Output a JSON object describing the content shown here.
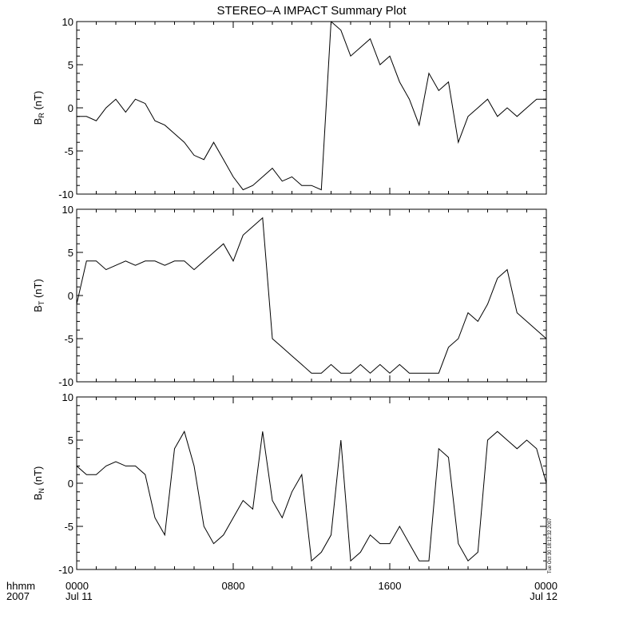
{
  "title": "STEREO–A IMPACT Summary Plot",
  "timestamp": "Tue Oct 30 18:12:32 2007",
  "time_axis_labels": {
    "row1_unit": "hhmm",
    "row2_year": "2007",
    "ticks": [
      {
        "time": "0000",
        "date": "Jul 11"
      },
      {
        "time": "0800",
        "date": ""
      },
      {
        "time": "1600",
        "date": ""
      },
      {
        "time": "0000",
        "date": "Jul 12"
      }
    ]
  },
  "chart_data": [
    {
      "type": "line",
      "series": [
        {
          "name": "BR"
        }
      ],
      "ylabel": {
        "main": "B",
        "sub": "R",
        "unit": "(nT)"
      },
      "ylim": [
        -10,
        10
      ],
      "xlim_hours": [
        0,
        24
      ],
      "yticks": [
        "10",
        "5",
        "0",
        "-5",
        "-10"
      ],
      "x_hours": [
        0,
        0.5,
        1,
        1.5,
        2,
        2.5,
        3,
        3.5,
        4,
        4.5,
        5,
        5.5,
        6,
        6.5,
        7,
        7.5,
        8,
        8.5,
        9,
        9.5,
        10,
        10.5,
        11,
        11.5,
        12,
        12.5,
        13,
        13.5,
        14,
        14.5,
        15,
        15.5,
        16,
        16.5,
        17,
        17.5,
        18,
        18.5,
        19,
        19.5,
        20,
        20.5,
        21,
        21.5,
        22,
        22.5,
        23,
        23.5,
        24
      ],
      "values": [
        -1,
        -1,
        -1.5,
        0,
        1,
        -0.5,
        1,
        0.5,
        -1.5,
        -2,
        -3,
        -4,
        -5.5,
        -6,
        -4,
        -6,
        -8,
        -9.5,
        -9,
        -8,
        -7,
        -8.5,
        -8,
        -9,
        -9,
        -9.5,
        10,
        9,
        6,
        7,
        8,
        5,
        6,
        3,
        1,
        -2,
        4,
        2,
        3,
        -4,
        -1,
        0,
        1,
        -1,
        0,
        -1,
        0,
        1,
        1
      ]
    },
    {
      "type": "line",
      "series": [
        {
          "name": "BT"
        }
      ],
      "ylabel": {
        "main": "B",
        "sub": "T",
        "unit": "(nT)"
      },
      "ylim": [
        -10,
        10
      ],
      "xlim_hours": [
        0,
        24
      ],
      "yticks": [
        "10",
        "5",
        "0",
        "-5",
        "-10"
      ],
      "x_hours": [
        0,
        0.5,
        1,
        1.5,
        2,
        2.5,
        3,
        3.5,
        4,
        4.5,
        5,
        5.5,
        6,
        6.5,
        7,
        7.5,
        8,
        8.5,
        9,
        9.5,
        10,
        10.5,
        11,
        11.5,
        12,
        12.5,
        13,
        13.5,
        14,
        14.5,
        15,
        15.5,
        16,
        16.5,
        17,
        17.5,
        18,
        18.5,
        19,
        19.5,
        20,
        20.5,
        21,
        21.5,
        22,
        22.5,
        23,
        23.5,
        24
      ],
      "values": [
        -1,
        4,
        4,
        3,
        3.5,
        4,
        3.5,
        4,
        4,
        3.5,
        4,
        4,
        3,
        4,
        5,
        6,
        4,
        7,
        8,
        9,
        -5,
        -6,
        -7,
        -8,
        -9,
        -9,
        -8,
        -9,
        -9,
        -8,
        -9,
        -8,
        -9,
        -8,
        -9,
        -9,
        -9,
        -9,
        -6,
        -5,
        -2,
        -3,
        -1,
        2,
        3,
        -2,
        -3,
        -4,
        -5
      ]
    },
    {
      "type": "line",
      "series": [
        {
          "name": "BN"
        }
      ],
      "ylabel": {
        "main": "B",
        "sub": "N",
        "unit": "(nT)"
      },
      "ylim": [
        -10,
        10
      ],
      "xlim_hours": [
        0,
        24
      ],
      "yticks": [
        "10",
        "5",
        "0",
        "-5",
        "-10"
      ],
      "x_hours": [
        0,
        0.5,
        1,
        1.5,
        2,
        2.5,
        3,
        3.5,
        4,
        4.5,
        5,
        5.5,
        6,
        6.5,
        7,
        7.5,
        8,
        8.5,
        9,
        9.5,
        10,
        10.5,
        11,
        11.5,
        12,
        12.5,
        13,
        13.5,
        14,
        14.5,
        15,
        15.5,
        16,
        16.5,
        17,
        17.5,
        18,
        18.5,
        19,
        19.5,
        20,
        20.5,
        21,
        21.5,
        22,
        22.5,
        23,
        23.5,
        24
      ],
      "values": [
        2,
        1,
        1,
        2,
        2.5,
        2,
        2,
        1,
        -4,
        -6,
        4,
        6,
        2,
        -5,
        -7,
        -6,
        -4,
        -2,
        -3,
        6,
        -2,
        -4,
        -1,
        1,
        -9,
        -8,
        -6,
        5,
        -9,
        -8,
        -6,
        -7,
        -7,
        -5,
        -7,
        -9,
        -9,
        4,
        3,
        -7,
        -9,
        -8,
        5,
        6,
        5,
        4,
        5,
        4,
        0
      ]
    }
  ]
}
